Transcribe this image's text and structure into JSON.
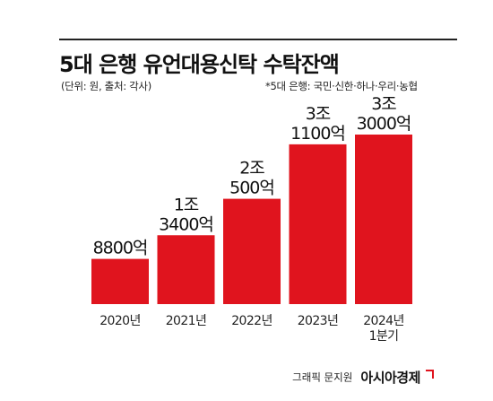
{
  "title": "5대 은행 유언대용신탁 수탁잔액",
  "unit_note": "(단위: 원, 출처: 각사)",
  "banks_note": "*5대 은행: 국민·신한·하나·우리·농협",
  "credit_text": "그래픽 문지원",
  "brand": "아시아경제",
  "colors": {
    "bar": "#e0141e",
    "text": "#111111",
    "rule": "#222222"
  },
  "chart_data": {
    "type": "bar",
    "title": "5대 은행 유언대용신탁 수탁잔액",
    "xlabel": "",
    "ylabel": "",
    "unit": "원",
    "categories": [
      [
        "2020년"
      ],
      [
        "2021년"
      ],
      [
        "2022년"
      ],
      [
        "2023년"
      ],
      [
        "2024년",
        "1분기"
      ]
    ],
    "values": [
      880000000000,
      1340000000000,
      2050000000000,
      3110000000000,
      3300000000000
    ],
    "value_labels": [
      [
        "8800억"
      ],
      [
        "1조",
        "3400억"
      ],
      [
        "2조",
        "500억"
      ],
      [
        "3조",
        "1100억"
      ],
      [
        "3조",
        "3000억"
      ]
    ],
    "ylim": [
      0,
      3300000000000
    ],
    "grid": false,
    "legend": "none"
  }
}
